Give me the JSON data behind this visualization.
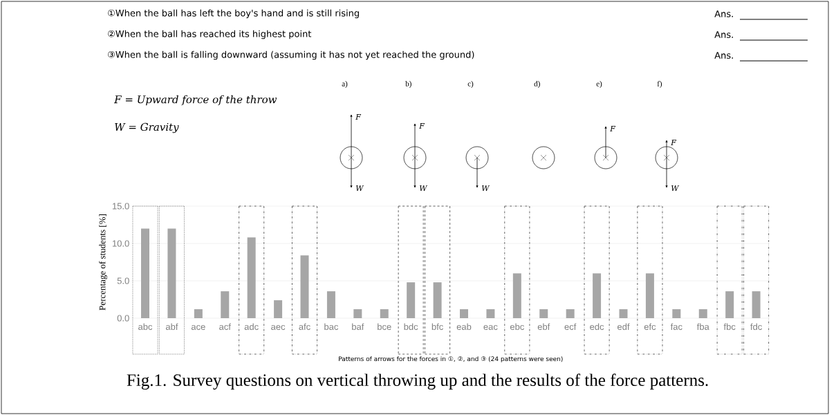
{
  "chart_data": {
    "type": "bar",
    "title": "Fig.1. Survey questions on vertical throwing up and the results of the force patterns.",
    "xlabel": "Patterns of arrows for the forces in ①, ②, and ③ (24 patterns were seen)",
    "ylabel": "Percentage of students [%]",
    "categories": [
      "abc",
      "abf",
      "ace",
      "acf",
      "adc",
      "aec",
      "afc",
      "bac",
      "baf",
      "bce",
      "bdc",
      "bfc",
      "eab",
      "eac",
      "ebc",
      "ebf",
      "ecf",
      "edc",
      "edf",
      "efc",
      "fac",
      "fba",
      "fbc",
      "fdc"
    ],
    "values": [
      12.0,
      12.0,
      1.2,
      3.6,
      10.8,
      2.4,
      8.4,
      3.6,
      1.2,
      1.2,
      4.8,
      4.8,
      1.2,
      1.2,
      6.0,
      1.2,
      1.2,
      6.0,
      1.2,
      6.0,
      1.2,
      1.2,
      3.6,
      3.6
    ],
    "color": "#a6a6a6",
    "ylim": [
      0,
      15
    ],
    "yticks": [
      {
        "value": 0,
        "label": "0.0"
      },
      {
        "value": 5,
        "label": "5.0"
      },
      {
        "value": 10,
        "label": "10.0"
      },
      {
        "value": 15,
        "label": "15.0"
      }
    ],
    "grid": "y",
    "annotations": [
      "①When the ball has left the boy's hand and is still rising",
      "②When the ball has reached its highest point",
      "③When the ball is falling downward (assuming it has not yet reached the ground)",
      "Ans.",
      "Ans.",
      "Ans.",
      "F = Upward force of the throw",
      "W = Gravity",
      "a)",
      "b)",
      "c)",
      "d)",
      "e)",
      "f)",
      "F",
      "W",
      "F",
      "W",
      "W",
      "F",
      "F",
      "W"
    ]
  }
}
